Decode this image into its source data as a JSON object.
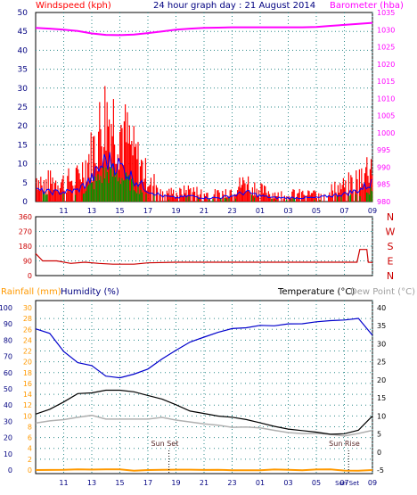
{
  "header": {
    "left": "Windspeed (kph)",
    "center": "24 hour graph day : 21 August 2014",
    "right": "Barometer (hba)"
  },
  "colors": {
    "windspeed": "#ff0000",
    "wind_avg": "#0000ff",
    "wind_green": "#009900",
    "barometer": "#ff00ff",
    "direction": "#cc0000",
    "humidity": "#0000cc",
    "temperature": "#000000",
    "dewpoint": "#b0b0b0",
    "rainfall": "#ff9900",
    "grid": "#2e8b8b",
    "axis_left": "#000080",
    "axis_right": "#000000"
  },
  "chart_data": [
    {
      "type": "line",
      "panel": "wind-barometer",
      "title": "24 hour graph day : 21 August 2014",
      "ylabel_left": "Windspeed (kph)",
      "ylabel_right": "Barometer (hba)",
      "x_ticks": [
        "11",
        "13",
        "15",
        "17",
        "19",
        "21",
        "23",
        "01",
        "03",
        "05",
        "07",
        "09"
      ],
      "ylim_left": [
        0,
        50
      ],
      "yticks_left": [
        0,
        5,
        10,
        15,
        20,
        25,
        30,
        35,
        40,
        45,
        50
      ],
      "ylim_right": [
        980,
        1035
      ],
      "yticks_right": [
        980,
        985,
        990,
        995,
        1000,
        1005,
        1010,
        1015,
        1020,
        1025,
        1030,
        1035
      ],
      "x_hours": [
        9,
        10,
        11,
        12,
        13,
        14,
        15,
        16,
        17,
        18,
        19,
        20,
        21,
        22,
        23,
        24,
        25,
        26,
        27,
        28,
        29,
        30,
        31,
        32,
        33
      ],
      "series": [
        {
          "name": "Windspeed (kph)",
          "values": [
            6,
            5,
            5,
            6,
            12,
            22,
            19,
            12,
            6,
            3,
            2,
            3,
            2,
            2,
            3,
            5,
            3,
            2,
            2,
            2,
            2,
            3,
            4,
            6,
            10
          ]
        },
        {
          "name": "Barometer (hba)",
          "values": [
            1030.5,
            1030.3,
            1030.0,
            1029.6,
            1028.9,
            1028.5,
            1028.4,
            1028.6,
            1029.0,
            1029.5,
            1030.0,
            1030.3,
            1030.5,
            1030.6,
            1030.7,
            1030.7,
            1030.7,
            1030.7,
            1030.7,
            1030.7,
            1030.8,
            1031.1,
            1031.4,
            1031.7,
            1032.0
          ]
        }
      ]
    },
    {
      "type": "line",
      "panel": "wind-direction",
      "yticks": [
        0,
        90,
        180,
        270,
        360
      ],
      "ylim": [
        0,
        360
      ],
      "ylabel_right": [
        "N",
        "W",
        "S",
        "E",
        "N"
      ],
      "x_hours": [
        9,
        9.5,
        10.5,
        11.5,
        12.5,
        13.5,
        14.5,
        16,
        17,
        19,
        21,
        23,
        25,
        27,
        29,
        31.9,
        32.1,
        32.6,
        32.7,
        33
      ],
      "values": [
        135,
        90,
        90,
        75,
        82,
        75,
        70,
        70,
        78,
        82,
        82,
        82,
        82,
        82,
        82,
        82,
        160,
        160,
        82,
        80
      ]
    },
    {
      "type": "line",
      "panel": "temperature-humidity",
      "legend": [
        "Rainfall (mm)",
        "Humidity (%)",
        "Temperature (°C)",
        "Dew Point (°C)"
      ],
      "ylim_humidity": [
        0,
        100
      ],
      "yticks_humidity": [
        0,
        10,
        20,
        30,
        40,
        50,
        60,
        70,
        80,
        90,
        100
      ],
      "ylim_rain": [
        0,
        30
      ],
      "yticks_rain": [
        0,
        2,
        4,
        6,
        8,
        10,
        12,
        14,
        16,
        18,
        20,
        22,
        24,
        26,
        28,
        30
      ],
      "ylim_temp": [
        -5,
        40
      ],
      "yticks_temp": [
        -5,
        0,
        5,
        10,
        15,
        20,
        25,
        30,
        35,
        40
      ],
      "annotations": [
        "Sun Set",
        "Sun Rise",
        "Sun Set"
      ],
      "x_hours": [
        9,
        10,
        11,
        12,
        13,
        14,
        15,
        16,
        17,
        18,
        19,
        20,
        21,
        22,
        23,
        24,
        25,
        26,
        27,
        28,
        29,
        30,
        31,
        32,
        33
      ],
      "series": [
        {
          "name": "Humidity (%)",
          "values": [
            87,
            84,
            73,
            66,
            64,
            58,
            57,
            59,
            62,
            68,
            74,
            79,
            82,
            85,
            87,
            88,
            89,
            89,
            90,
            90,
            91,
            92,
            92,
            93,
            83
          ]
        },
        {
          "name": "Temperature (°C)",
          "values": [
            10.5,
            12,
            14,
            16,
            16.5,
            17,
            17,
            16.8,
            15.5,
            14.5,
            13,
            11.5,
            10.5,
            10,
            9.5,
            9,
            8,
            7,
            6.5,
            6,
            5.5,
            5,
            5,
            6,
            10
          ]
        },
        {
          "name": "Dew Point (°C)",
          "values": [
            8,
            8.5,
            9,
            9.5,
            10,
            9,
            9,
            9,
            9,
            9.5,
            9,
            8.5,
            8,
            7.5,
            7,
            7,
            6.5,
            6,
            5.5,
            5,
            5,
            5,
            4.5,
            5,
            6
          ]
        },
        {
          "name": "Rainfall (mm)",
          "values": [
            0,
            0,
            0,
            0,
            0,
            0,
            0,
            0,
            0,
            0,
            0,
            0,
            0,
            0,
            0,
            0,
            0,
            0,
            0,
            0,
            0,
            0,
            0,
            0,
            0
          ]
        }
      ]
    }
  ]
}
